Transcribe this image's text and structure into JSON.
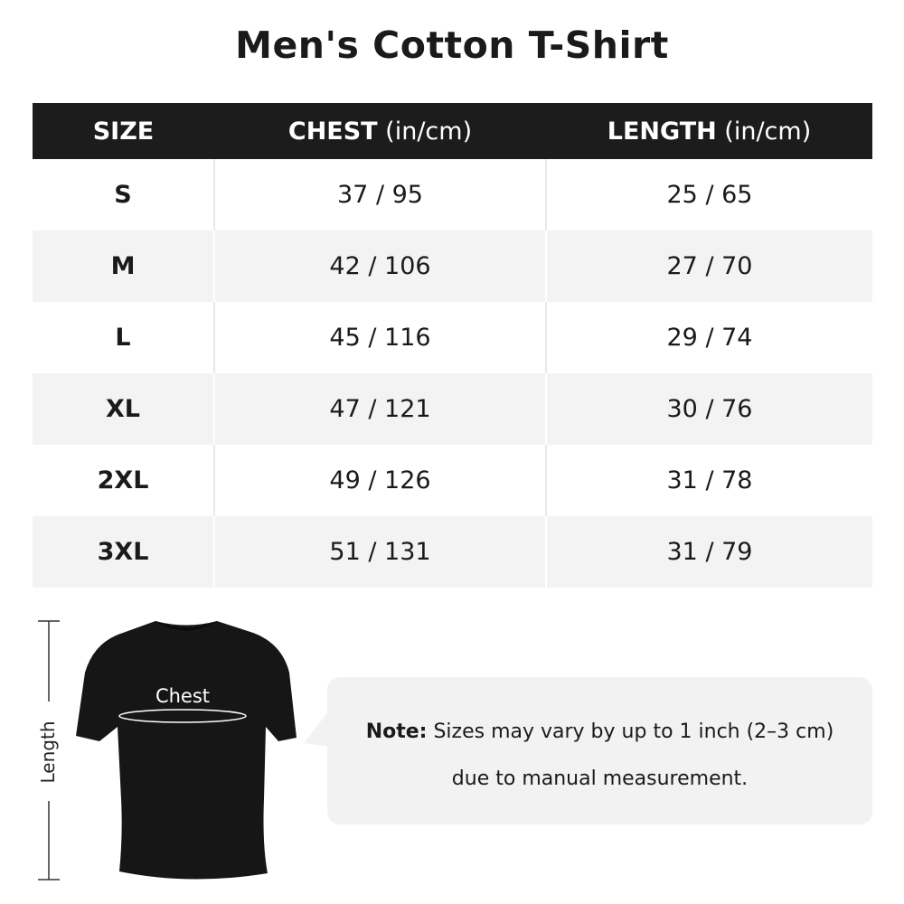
{
  "title": "Men's Cotton T-Shirt",
  "table": {
    "headers": [
      {
        "bold": "SIZE",
        "unit": ""
      },
      {
        "bold": "CHEST",
        "unit": " (in/cm)"
      },
      {
        "bold": "LENGTH",
        "unit": " (in/cm)"
      }
    ],
    "rows": [
      [
        "S",
        "37 / 95",
        "25 / 65"
      ],
      [
        "M",
        "42 / 106",
        "27 / 70"
      ],
      [
        "L",
        "45 / 116",
        "29 / 74"
      ],
      [
        "XL",
        "47 / 121",
        "30 / 76"
      ],
      [
        "2XL",
        "49 / 126",
        "31 / 78"
      ],
      [
        "3XL",
        "51 / 131",
        "31 / 79"
      ]
    ]
  },
  "diagram": {
    "chest_label": "Chest",
    "length_label": "Length"
  },
  "note": {
    "label": "Note:",
    "line1": " Sizes may vary by up to 1 inch (2–3 cm)",
    "line2": "due to manual measurement."
  }
}
